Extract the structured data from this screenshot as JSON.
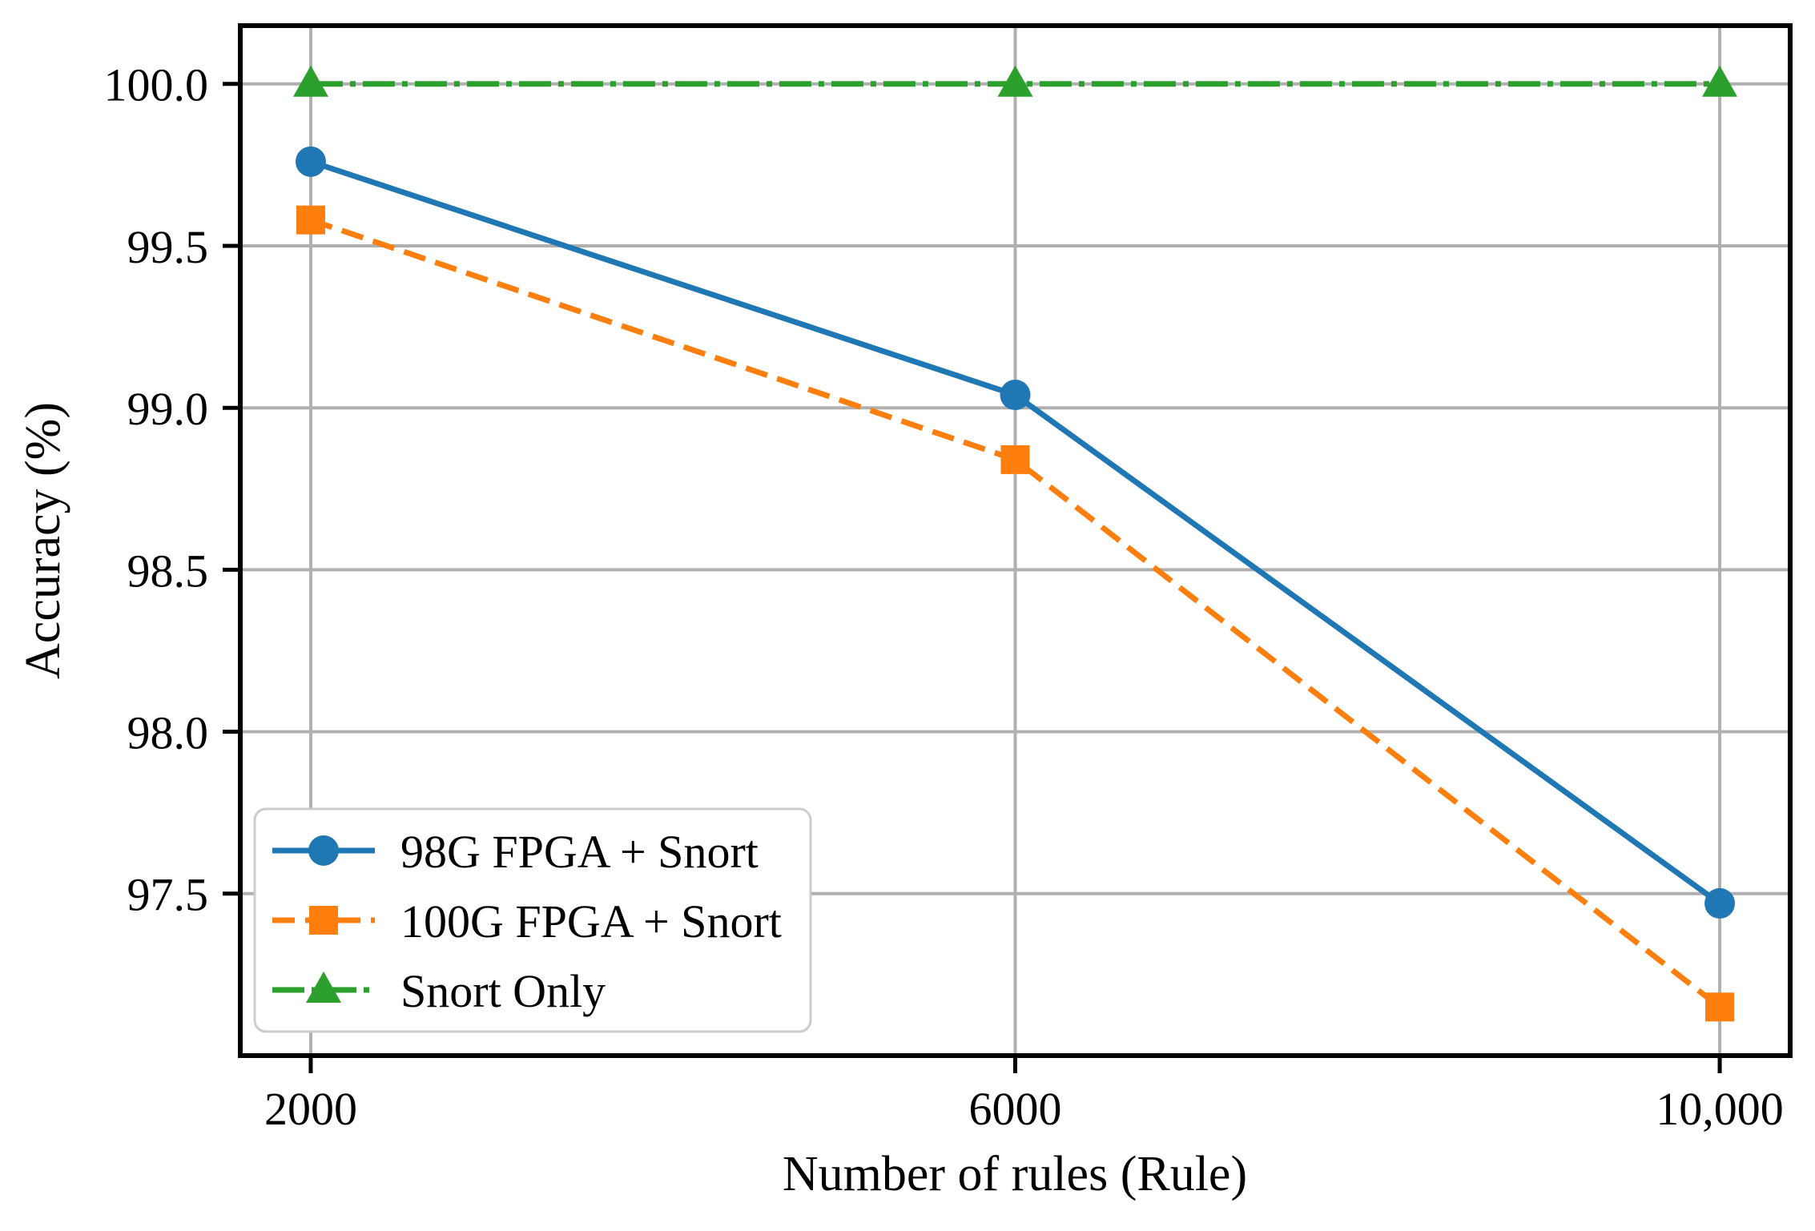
{
  "figure": {
    "kind": "line-chart-figure",
    "background": "#ffffff"
  },
  "chart_data": {
    "type": "line",
    "title": "",
    "xlabel": "Number of rules (Rule)",
    "ylabel": "Accuracy (%)",
    "x": [
      2000,
      6000,
      10000
    ],
    "xtick_labels": [
      "2000",
      "6000",
      "10,000"
    ],
    "yticks": [
      100.0,
      99.5,
      99.0,
      98.5,
      98.0,
      97.5
    ],
    "ytick_labels": [
      "100.0",
      "99.5",
      "99.0",
      "98.5",
      "98.0",
      "97.5"
    ],
    "xlim": [
      1600,
      10400
    ],
    "ylim": [
      97.0,
      100.18
    ],
    "grid": true,
    "legend_position": "lower left",
    "series": [
      {
        "name": "98G FPGA + Snort",
        "values": [
          99.76,
          99.04,
          97.47
        ],
        "color": "#1f77b4",
        "linestyle": "solid",
        "marker": "circle"
      },
      {
        "name": "100G FPGA + Snort",
        "values": [
          99.58,
          98.84,
          97.15
        ],
        "color": "#ff7f0e",
        "linestyle": "dashed",
        "marker": "square"
      },
      {
        "name": "Snort Only",
        "values": [
          100.0,
          100.0,
          100.0
        ],
        "color": "#2ca02c",
        "linestyle": "dashdot",
        "marker": "triangle"
      }
    ],
    "style": {
      "grid_color": "#b0b0b0",
      "spine_color": "#000000",
      "legend_border": "#cccccc",
      "legend_background": "#ffffff"
    }
  }
}
